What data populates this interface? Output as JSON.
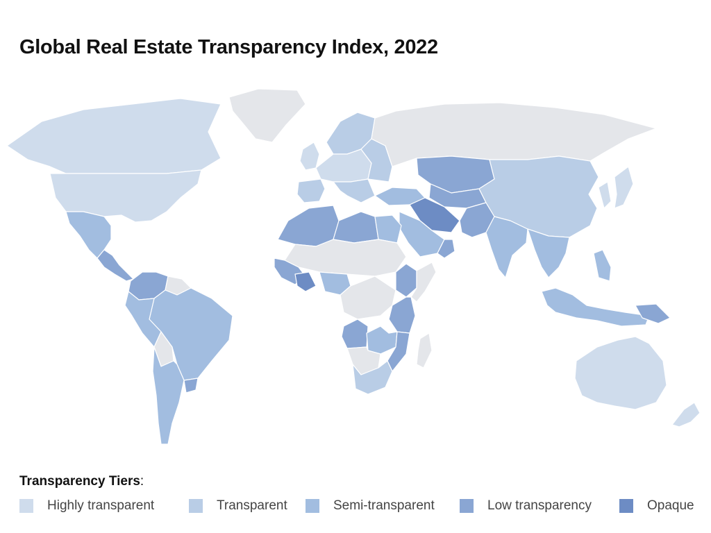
{
  "title": "Global Real Estate Transparency Index, 2022",
  "legend": {
    "title": "Transparency Tiers",
    "items": [
      {
        "label": "Highly transparent",
        "color": "#cfdcec"
      },
      {
        "label": "Transparent",
        "color": "#b9cde6"
      },
      {
        "label": "Semi-transparent",
        "color": "#a2bde0"
      },
      {
        "label": "Low transparency",
        "color": "#8aa6d3"
      },
      {
        "label": "Opaque",
        "color": "#6d8cc4"
      }
    ]
  },
  "no_data_color": "#e4e6ea"
}
